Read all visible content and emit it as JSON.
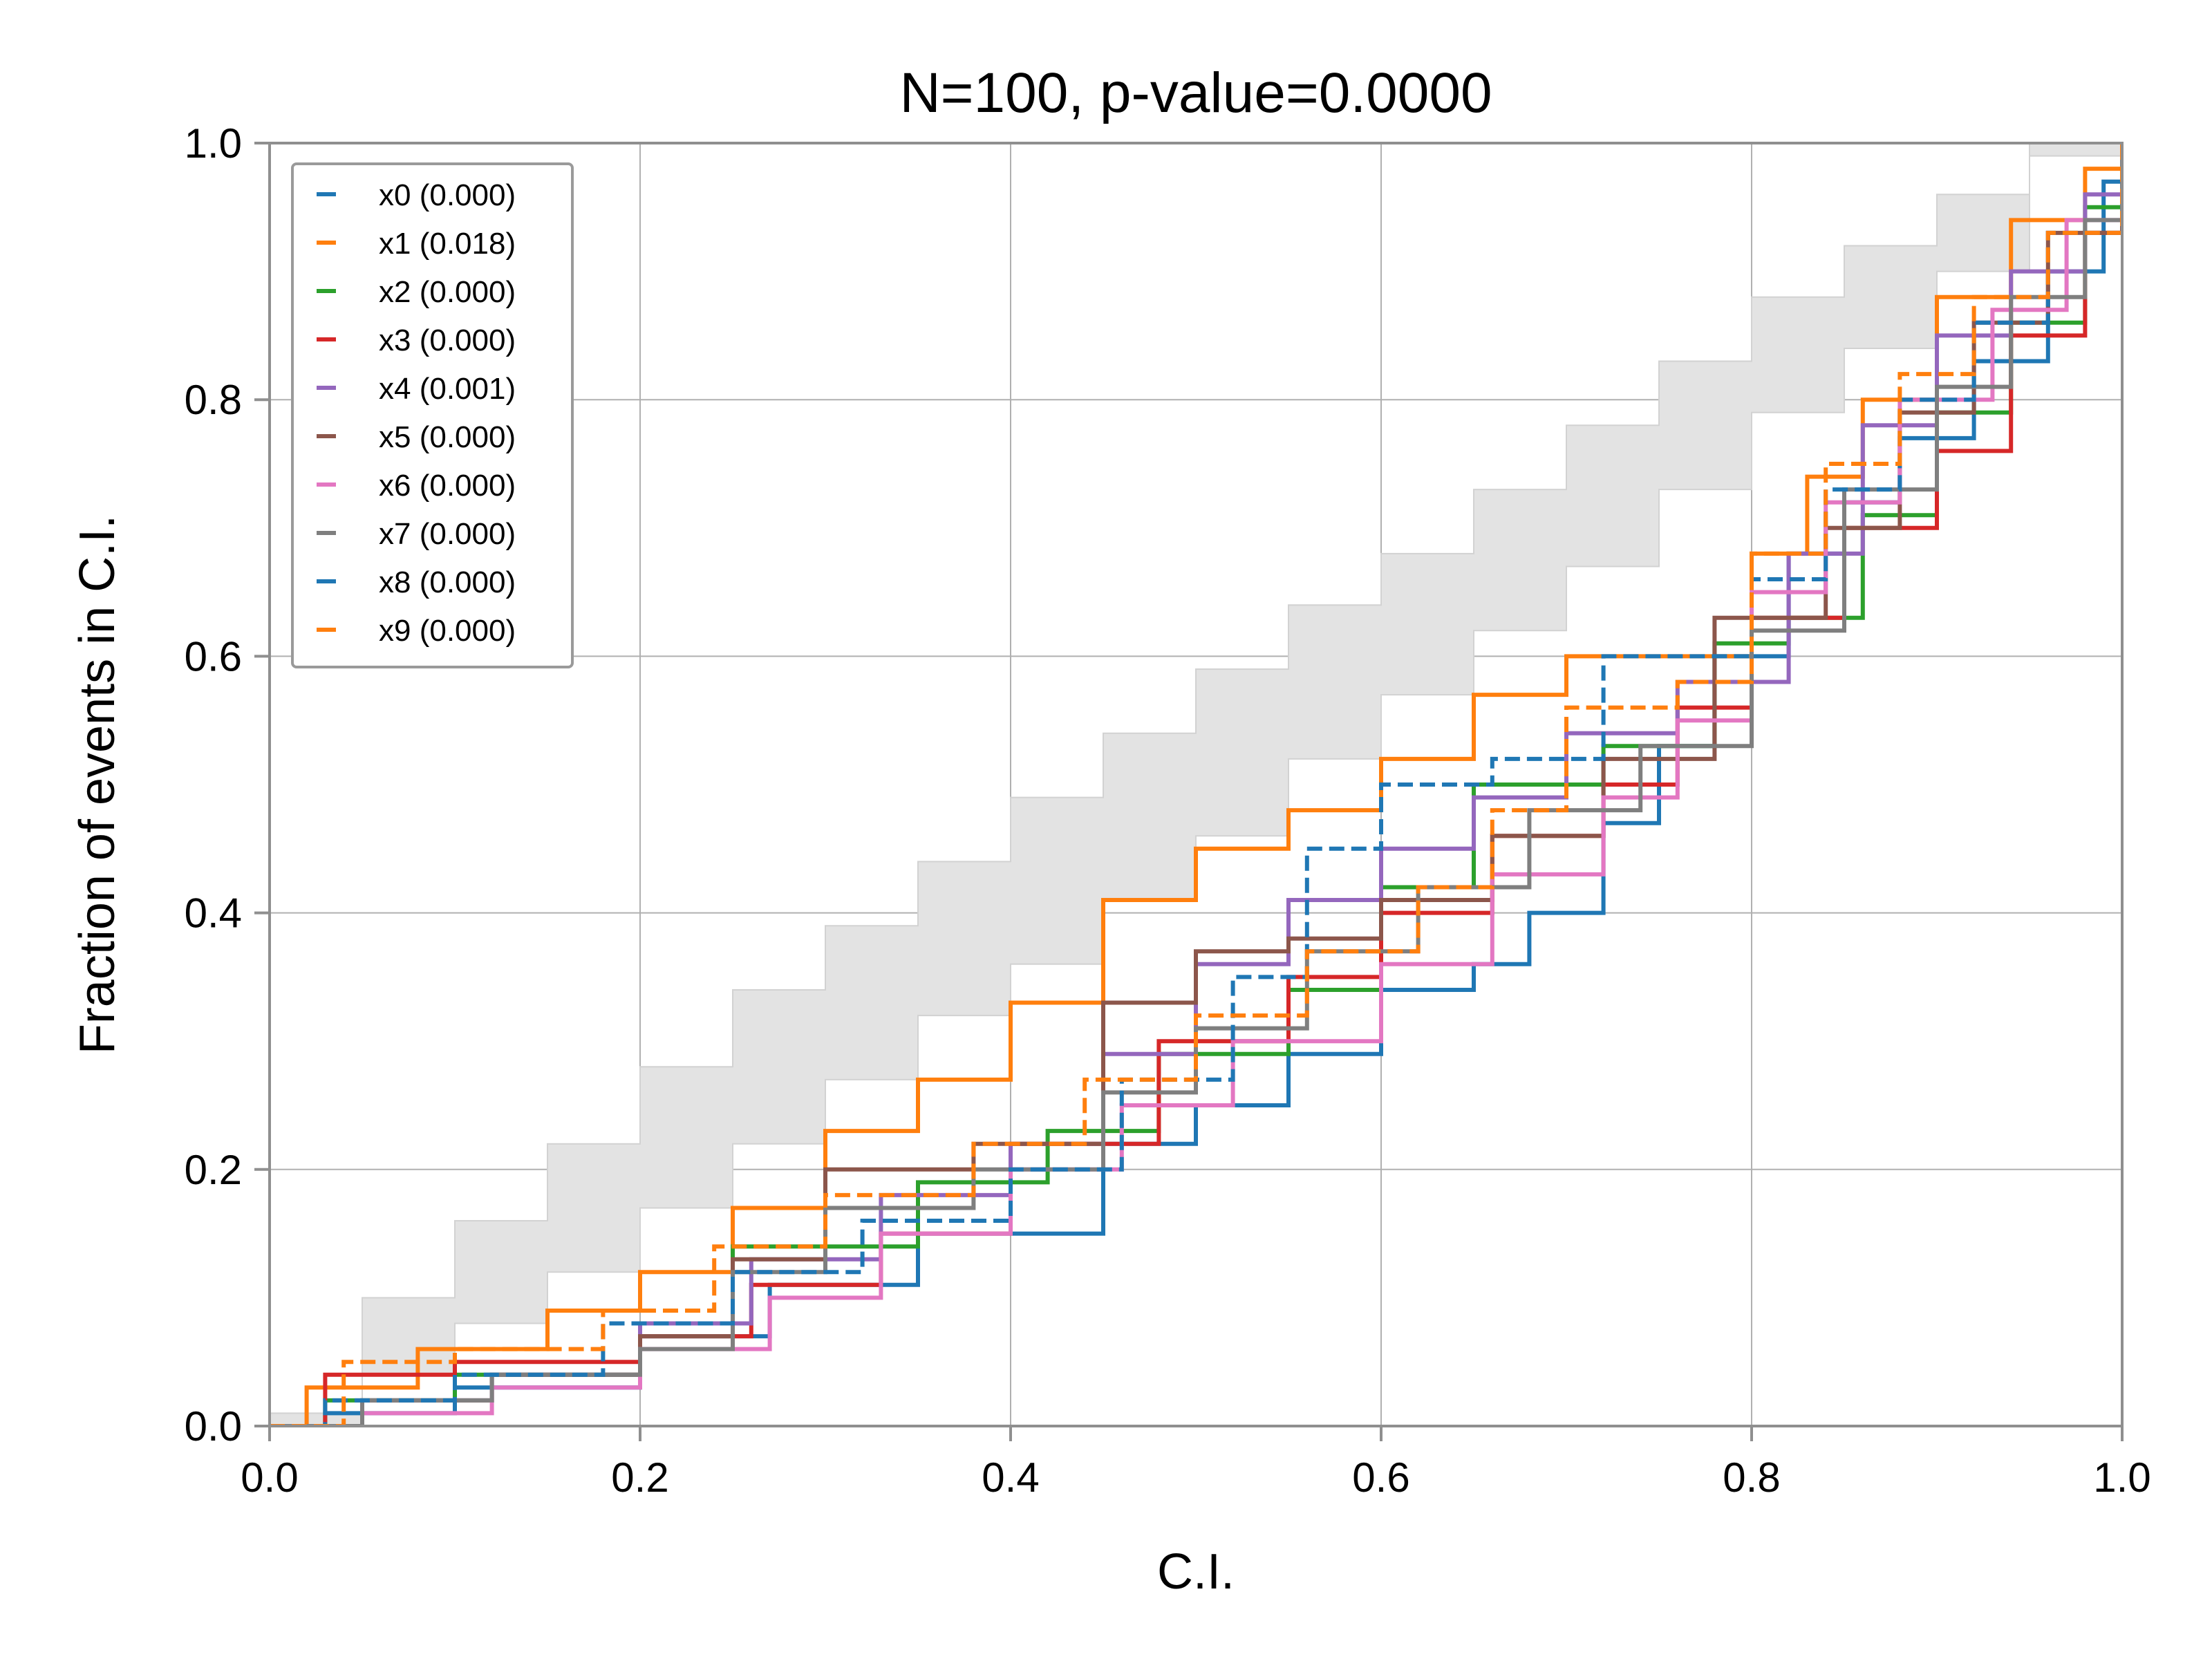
{
  "chart_data": {
    "type": "line",
    "title": "N=100, p-value=0.0000",
    "xlabel": "C.I.",
    "ylabel": "Fraction of events in C.I.",
    "xlim": [
      0.0,
      1.0
    ],
    "ylim": [
      0.0,
      1.0
    ],
    "xticks": [
      "0.0",
      "0.2",
      "0.4",
      "0.6",
      "0.8",
      "1.0"
    ],
    "yticks": [
      "0.0",
      "0.2",
      "0.4",
      "0.6",
      "0.8",
      "1.0"
    ],
    "grid": true,
    "legend_position": "top-left",
    "band": {
      "description": "90% confidence band for N=100",
      "x": [
        0.0,
        0.05,
        0.1,
        0.15,
        0.2,
        0.25,
        0.3,
        0.35,
        0.4,
        0.45,
        0.5,
        0.55,
        0.6,
        0.65,
        0.7,
        0.75,
        0.8,
        0.85,
        0.9,
        0.95,
        1.0
      ],
      "lower": [
        0.0,
        0.01,
        0.04,
        0.08,
        0.12,
        0.17,
        0.22,
        0.27,
        0.32,
        0.36,
        0.41,
        0.46,
        0.52,
        0.57,
        0.62,
        0.67,
        0.73,
        0.79,
        0.84,
        0.9,
        1.0
      ],
      "upper": [
        0.0,
        0.1,
        0.16,
        0.22,
        0.28,
        0.34,
        0.39,
        0.44,
        0.49,
        0.54,
        0.59,
        0.64,
        0.68,
        0.73,
        0.78,
        0.83,
        0.88,
        0.92,
        0.96,
        0.99,
        1.0
      ],
      "color": "#e3e3e3"
    },
    "series": [
      {
        "name": "x0 (0.000)",
        "color": "#1f77b4",
        "dash": false,
        "x": [
          0,
          0.03,
          0.1,
          0.2,
          0.27,
          0.35,
          0.45,
          0.5,
          0.55,
          0.6,
          0.65,
          0.68,
          0.72,
          0.75,
          0.78,
          0.82,
          0.85,
          0.88,
          0.92,
          0.96,
          0.99,
          1.0
        ],
        "y": [
          0,
          0.01,
          0.03,
          0.07,
          0.11,
          0.15,
          0.22,
          0.25,
          0.29,
          0.34,
          0.36,
          0.4,
          0.47,
          0.53,
          0.6,
          0.68,
          0.72,
          0.77,
          0.83,
          0.9,
          0.97,
          1.0
        ]
      },
      {
        "name": "x1 (0.018)",
        "color": "#ff7f0e",
        "dash": false,
        "x": [
          0,
          0.02,
          0.08,
          0.15,
          0.2,
          0.25,
          0.3,
          0.35,
          0.4,
          0.45,
          0.5,
          0.55,
          0.6,
          0.65,
          0.7,
          0.75,
          0.8,
          0.83,
          0.86,
          0.9,
          0.94,
          0.98,
          1.0
        ],
        "y": [
          0,
          0.03,
          0.06,
          0.09,
          0.12,
          0.17,
          0.23,
          0.27,
          0.33,
          0.41,
          0.45,
          0.48,
          0.52,
          0.57,
          0.6,
          0.6,
          0.68,
          0.74,
          0.8,
          0.88,
          0.94,
          0.98,
          1.0
        ]
      },
      {
        "name": "x2 (0.000)",
        "color": "#2ca02c",
        "dash": false,
        "x": [
          0,
          0.03,
          0.1,
          0.2,
          0.25,
          0.35,
          0.42,
          0.48,
          0.55,
          0.6,
          0.65,
          0.72,
          0.78,
          0.82,
          0.86,
          0.9,
          0.94,
          0.98,
          1.0
        ],
        "y": [
          0,
          0.02,
          0.04,
          0.08,
          0.14,
          0.19,
          0.23,
          0.29,
          0.34,
          0.42,
          0.5,
          0.53,
          0.61,
          0.63,
          0.71,
          0.79,
          0.86,
          0.95,
          1.0
        ]
      },
      {
        "name": "x3 (0.000)",
        "color": "#d62728",
        "dash": false,
        "x": [
          0,
          0.03,
          0.1,
          0.2,
          0.26,
          0.33,
          0.4,
          0.48,
          0.55,
          0.6,
          0.66,
          0.72,
          0.76,
          0.8,
          0.85,
          0.9,
          0.94,
          0.98,
          1.0
        ],
        "y": [
          0,
          0.04,
          0.05,
          0.07,
          0.11,
          0.15,
          0.22,
          0.3,
          0.35,
          0.4,
          0.46,
          0.5,
          0.56,
          0.63,
          0.7,
          0.76,
          0.85,
          0.93,
          1.0
        ]
      },
      {
        "name": "x4 (0.001)",
        "color": "#9467bd",
        "dash": false,
        "x": [
          0,
          0.05,
          0.12,
          0.2,
          0.26,
          0.33,
          0.4,
          0.45,
          0.5,
          0.55,
          0.6,
          0.65,
          0.7,
          0.76,
          0.82,
          0.86,
          0.9,
          0.94,
          0.98,
          1.0
        ],
        "y": [
          0,
          0.02,
          0.04,
          0.08,
          0.13,
          0.18,
          0.22,
          0.29,
          0.36,
          0.41,
          0.45,
          0.49,
          0.54,
          0.58,
          0.68,
          0.78,
          0.85,
          0.9,
          0.96,
          1.0
        ]
      },
      {
        "name": "x5 (0.000)",
        "color": "#8c564b",
        "dash": false,
        "x": [
          0,
          0.05,
          0.12,
          0.2,
          0.25,
          0.3,
          0.38,
          0.45,
          0.5,
          0.55,
          0.6,
          0.66,
          0.72,
          0.78,
          0.84,
          0.88,
          0.92,
          0.96,
          1.0
        ],
        "y": [
          0,
          0.02,
          0.04,
          0.07,
          0.13,
          0.2,
          0.22,
          0.33,
          0.37,
          0.38,
          0.41,
          0.46,
          0.52,
          0.63,
          0.7,
          0.79,
          0.86,
          0.93,
          1.0
        ]
      },
      {
        "name": "x6 (0.000)",
        "color": "#e377c2",
        "dash": false,
        "x": [
          0,
          0.05,
          0.12,
          0.2,
          0.27,
          0.33,
          0.4,
          0.46,
          0.52,
          0.6,
          0.66,
          0.72,
          0.76,
          0.8,
          0.84,
          0.88,
          0.93,
          0.97,
          1.0
        ],
        "y": [
          0,
          0.01,
          0.03,
          0.06,
          0.1,
          0.15,
          0.2,
          0.25,
          0.3,
          0.36,
          0.43,
          0.49,
          0.55,
          0.65,
          0.72,
          0.8,
          0.87,
          0.94,
          1.0
        ]
      },
      {
        "name": "x7 (0.000)",
        "color": "#7f7f7f",
        "dash": false,
        "x": [
          0,
          0.05,
          0.12,
          0.2,
          0.25,
          0.3,
          0.38,
          0.45,
          0.5,
          0.56,
          0.62,
          0.68,
          0.74,
          0.8,
          0.85,
          0.9,
          0.94,
          0.98,
          1.0
        ],
        "y": [
          0,
          0.02,
          0.04,
          0.06,
          0.12,
          0.17,
          0.2,
          0.26,
          0.31,
          0.37,
          0.42,
          0.48,
          0.53,
          0.62,
          0.73,
          0.81,
          0.88,
          0.94,
          1.0
        ]
      },
      {
        "name": "x8 (0.000)",
        "color": "#1f77b4",
        "dash": true,
        "x": [
          0,
          0.03,
          0.1,
          0.18,
          0.25,
          0.32,
          0.4,
          0.46,
          0.52,
          0.56,
          0.6,
          0.66,
          0.72,
          0.76,
          0.8,
          0.84,
          0.88,
          0.92,
          0.96,
          1.0
        ],
        "y": [
          0,
          0.02,
          0.04,
          0.08,
          0.12,
          0.16,
          0.2,
          0.27,
          0.35,
          0.45,
          0.5,
          0.52,
          0.6,
          0.6,
          0.66,
          0.73,
          0.8,
          0.86,
          0.93,
          1.0
        ]
      },
      {
        "name": "x9 (0.000)",
        "color": "#ff7f0e",
        "dash": true,
        "x": [
          0,
          0.04,
          0.1,
          0.18,
          0.24,
          0.3,
          0.38,
          0.44,
          0.5,
          0.56,
          0.62,
          0.66,
          0.7,
          0.76,
          0.8,
          0.84,
          0.88,
          0.92,
          0.96,
          1.0
        ],
        "y": [
          0,
          0.05,
          0.06,
          0.09,
          0.14,
          0.18,
          0.22,
          0.27,
          0.32,
          0.37,
          0.42,
          0.48,
          0.56,
          0.58,
          0.68,
          0.75,
          0.82,
          0.88,
          0.93,
          1.0
        ]
      }
    ]
  }
}
